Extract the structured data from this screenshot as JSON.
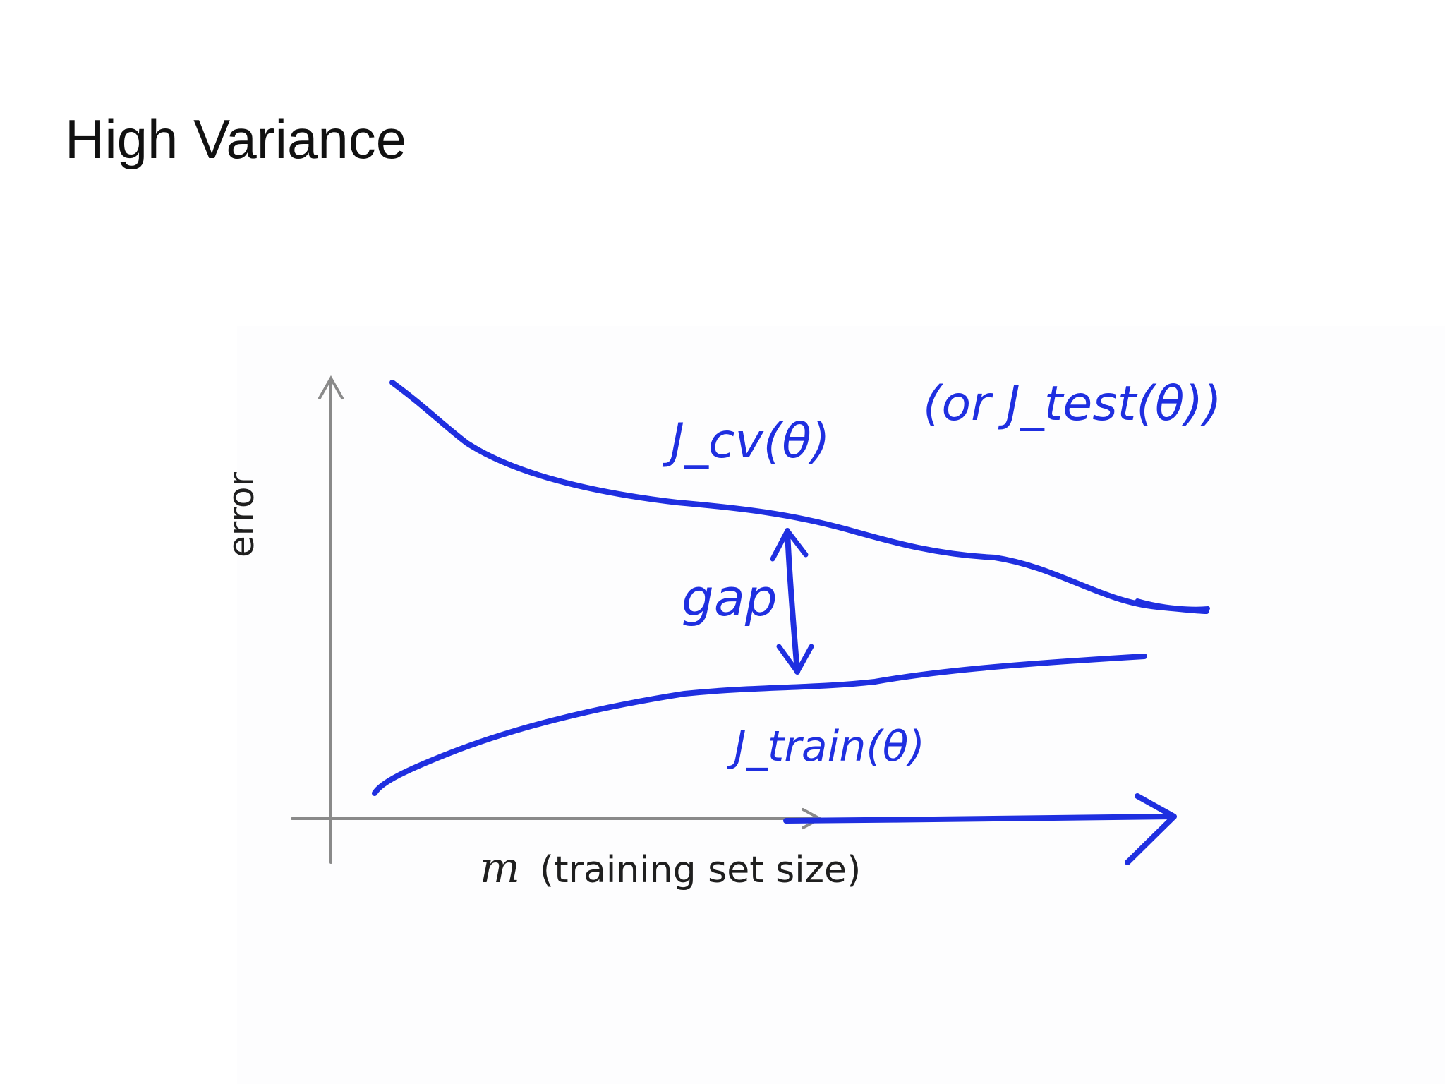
{
  "slide": {
    "title": "High Variance"
  },
  "diagram": {
    "y_axis_label": "error",
    "x_axis_variable": "m",
    "x_axis_label": "(training set size)",
    "cv_curve_label": "J_cv(θ)",
    "cv_alt_label": "(or J_test(θ))",
    "train_curve_label": "J_train(θ)",
    "gap_label": "gap",
    "ink_color": "#1f2fe0",
    "axis_color": "#8a8a8a"
  }
}
